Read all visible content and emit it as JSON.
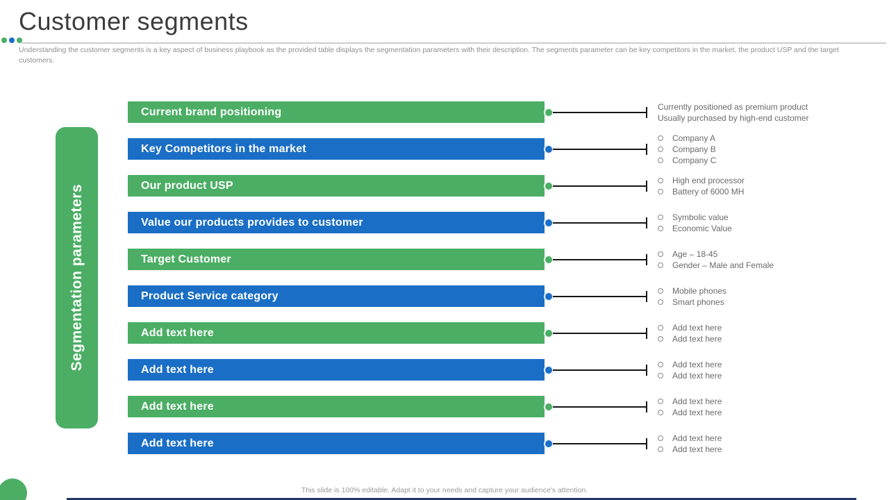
{
  "slide": {
    "title": "Customer segments",
    "description": "Understanding the customer segments is a key aspect of business playbook as the provided table displays the segmentation parameters with their description. The segments parameter can be key competitors in the market, the product USP and the target customers.",
    "side_label": "Segmentation parameters",
    "footer": "This slide is 100% editable. Adapt it to your needs and capture your audience's attention.",
    "colors": {
      "green": "#4bae64",
      "blue": "#1a6ec5",
      "navy": "#203864",
      "bar_label_text": "#ffffff",
      "detail_text": "#6a6a6a"
    }
  },
  "rows": [
    {
      "label": "Current brand positioning",
      "color": "green",
      "bullet_style": "none",
      "items": [
        "Currently positioned as premium product",
        "Usually purchased by high-end customer"
      ]
    },
    {
      "label": "Key Competitors in the market",
      "color": "blue",
      "bullet_style": "circle",
      "items": [
        "Company A",
        "Company B",
        "Company C"
      ]
    },
    {
      "label": "Our product USP",
      "color": "green",
      "bullet_style": "circle",
      "items": [
        "High end processor",
        "Battery of 6000 MH"
      ]
    },
    {
      "label": "Value our products provides to customer",
      "color": "blue",
      "bullet_style": "circle",
      "items": [
        "Symbolic value",
        "Economic Value"
      ]
    },
    {
      "label": "Target Customer",
      "color": "green",
      "bullet_style": "circle",
      "items": [
        "Age – 18-45",
        "Gender – Male and Female"
      ]
    },
    {
      "label": "Product Service category",
      "color": "blue",
      "bullet_style": "circle",
      "items": [
        "Mobile phones",
        "Smart phones"
      ]
    },
    {
      "label": "Add text here",
      "color": "green",
      "bullet_style": "circle",
      "items": [
        "Add text here",
        "Add text here"
      ]
    },
    {
      "label": "Add text here",
      "color": "blue",
      "bullet_style": "circle",
      "items": [
        "Add text here",
        "Add text here"
      ]
    },
    {
      "label": "Add text here",
      "color": "green",
      "bullet_style": "circle",
      "items": [
        "Add text here",
        "Add text here"
      ]
    },
    {
      "label": "Add text here",
      "color": "blue",
      "bullet_style": "circle",
      "items": [
        "Add text here",
        "Add text here"
      ]
    }
  ]
}
